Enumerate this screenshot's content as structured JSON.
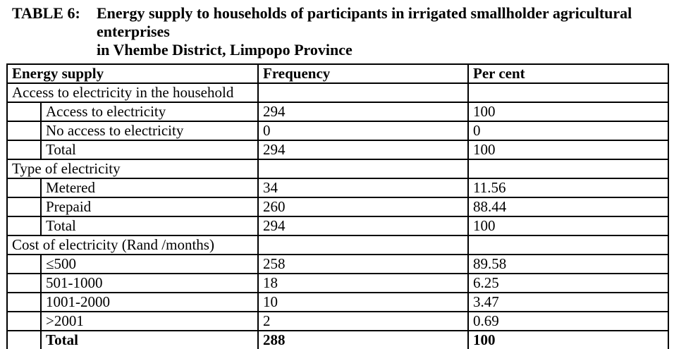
{
  "caption": {
    "label": "TABLE 6:",
    "lines": [
      "Energy supply to households of participants in irrigated smallholder agricultural enterprises",
      "in Vhembe District, Limpopo Province"
    ]
  },
  "table": {
    "headers": {
      "energy_supply": "Energy supply",
      "frequency": "Frequency",
      "percent": "Per cent"
    },
    "sections": [
      {
        "header": "Access to electricity in the household",
        "rows": [
          {
            "label": "Access to electricity",
            "frequency": "294",
            "percent": "100"
          },
          {
            "label": "No access to electricity",
            "frequency": "0",
            "percent": "0"
          },
          {
            "label": "Total",
            "frequency": "294",
            "percent": "100"
          }
        ]
      },
      {
        "header": "Type of electricity",
        "rows": [
          {
            "label": "Metered",
            "frequency": "34",
            "percent": "11.56"
          },
          {
            "label": "Prepaid",
            "frequency": "260",
            "percent": "88.44"
          },
          {
            "label": "Total",
            "frequency": "294",
            "percent": "100"
          }
        ]
      },
      {
        "header": "Cost of electricity (Rand /months)",
        "rows": [
          {
            "label": "≤500",
            "frequency": "258",
            "percent": "89.58"
          },
          {
            "label": "501-1000",
            "frequency": "18",
            "percent": "6.25"
          },
          {
            "label": "1001-2000",
            "frequency": "10",
            "percent": "3.47"
          },
          {
            "label": ">2001",
            "frequency": "2",
            "percent": "0.69"
          },
          {
            "label": "Total",
            "frequency": "288",
            "percent": "100",
            "bold": true
          }
        ]
      }
    ]
  },
  "colors": {
    "text": "#000000",
    "border": "#000000",
    "background": "#ffffff"
  }
}
